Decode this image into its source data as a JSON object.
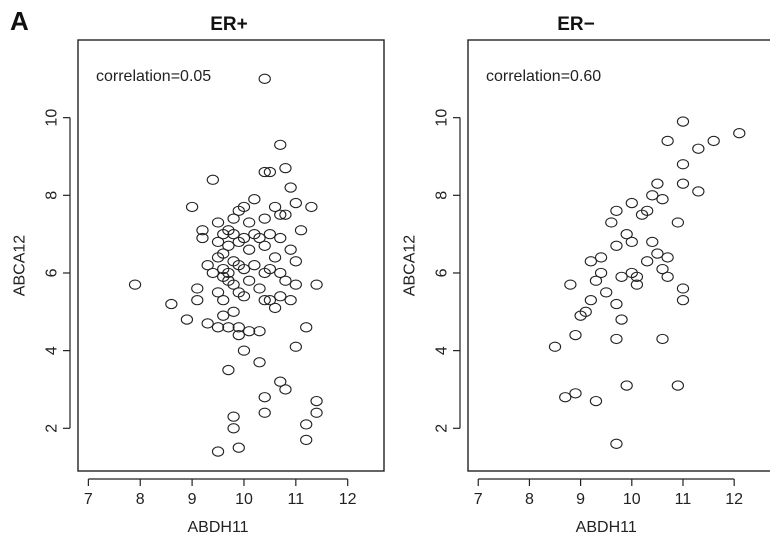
{
  "figure_label": "A",
  "chart_data": [
    {
      "type": "scatter",
      "title": "ER+",
      "xlabel": "ABDH11",
      "ylabel": "ABCA12",
      "annotation": "correlation=0.05",
      "xlim": [
        6.8,
        12.7
      ],
      "ylim": [
        0.9,
        12.0
      ],
      "xticks": [
        7,
        8,
        9,
        10,
        11,
        12
      ],
      "yticks": [
        2,
        4,
        6,
        8,
        10
      ],
      "points": [
        [
          10.4,
          11.0
        ],
        [
          7.9,
          5.7
        ],
        [
          8.6,
          5.2
        ],
        [
          8.9,
          4.8
        ],
        [
          9.0,
          7.7
        ],
        [
          9.1,
          5.6
        ],
        [
          9.1,
          5.3
        ],
        [
          9.2,
          7.1
        ],
        [
          9.2,
          6.9
        ],
        [
          9.3,
          6.2
        ],
        [
          9.3,
          4.7
        ],
        [
          9.4,
          8.4
        ],
        [
          9.4,
          6.0
        ],
        [
          9.5,
          7.3
        ],
        [
          9.5,
          6.8
        ],
        [
          9.5,
          6.4
        ],
        [
          9.5,
          5.5
        ],
        [
          9.5,
          4.6
        ],
        [
          9.6,
          7.0
        ],
        [
          9.6,
          6.5
        ],
        [
          9.6,
          6.1
        ],
        [
          9.6,
          5.9
        ],
        [
          9.6,
          5.3
        ],
        [
          9.6,
          4.9
        ],
        [
          9.7,
          7.1
        ],
        [
          9.7,
          6.7
        ],
        [
          9.7,
          6.0
        ],
        [
          9.7,
          5.8
        ],
        [
          9.7,
          4.6
        ],
        [
          9.8,
          7.4
        ],
        [
          9.8,
          7.0
        ],
        [
          9.8,
          6.3
        ],
        [
          9.8,
          5.7
        ],
        [
          9.8,
          5.0
        ],
        [
          9.9,
          7.6
        ],
        [
          9.9,
          6.8
        ],
        [
          9.9,
          6.2
        ],
        [
          9.9,
          5.5
        ],
        [
          9.9,
          4.6
        ],
        [
          9.9,
          4.4
        ],
        [
          10.0,
          7.7
        ],
        [
          10.0,
          6.9
        ],
        [
          10.0,
          6.1
        ],
        [
          10.0,
          5.4
        ],
        [
          10.1,
          7.3
        ],
        [
          10.1,
          6.6
        ],
        [
          10.1,
          5.8
        ],
        [
          10.1,
          4.5
        ],
        [
          10.2,
          7.9
        ],
        [
          10.2,
          7.0
        ],
        [
          10.2,
          6.2
        ],
        [
          10.3,
          6.9
        ],
        [
          10.3,
          5.6
        ],
        [
          10.3,
          4.5
        ],
        [
          10.4,
          8.6
        ],
        [
          10.4,
          7.4
        ],
        [
          10.4,
          6.7
        ],
        [
          10.4,
          6.0
        ],
        [
          10.4,
          5.3
        ],
        [
          10.5,
          8.6
        ],
        [
          10.5,
          7.0
        ],
        [
          10.5,
          6.1
        ],
        [
          10.5,
          5.3
        ],
        [
          10.6,
          7.7
        ],
        [
          10.6,
          6.4
        ],
        [
          10.6,
          5.1
        ],
        [
          10.7,
          9.3
        ],
        [
          10.7,
          7.5
        ],
        [
          10.7,
          6.9
        ],
        [
          10.7,
          6.0
        ],
        [
          10.7,
          5.4
        ],
        [
          10.8,
          8.7
        ],
        [
          10.8,
          7.5
        ],
        [
          10.8,
          5.8
        ],
        [
          10.9,
          8.2
        ],
        [
          10.9,
          6.6
        ],
        [
          10.9,
          5.3
        ],
        [
          11.0,
          7.8
        ],
        [
          11.0,
          6.3
        ],
        [
          11.0,
          5.7
        ],
        [
          11.0,
          4.1
        ],
        [
          11.1,
          7.1
        ],
        [
          11.2,
          4.6
        ],
        [
          11.3,
          7.7
        ],
        [
          11.4,
          5.7
        ],
        [
          9.7,
          3.5
        ],
        [
          9.8,
          2.3
        ],
        [
          9.8,
          2.0
        ],
        [
          9.9,
          1.5
        ],
        [
          9.5,
          1.4
        ],
        [
          10.0,
          4.0
        ],
        [
          10.3,
          3.7
        ],
        [
          10.4,
          2.8
        ],
        [
          10.4,
          2.4
        ],
        [
          10.7,
          3.2
        ],
        [
          10.8,
          3.0
        ],
        [
          11.2,
          2.1
        ],
        [
          11.2,
          1.7
        ],
        [
          11.4,
          2.4
        ],
        [
          11.4,
          2.7
        ]
      ]
    },
    {
      "type": "scatter",
      "title": "ER−",
      "xlabel": "ABDH11",
      "ylabel": "ABCA12",
      "annotation": "correlation=0.60",
      "xlim": [
        6.8,
        12.7
      ],
      "ylim": [
        0.9,
        12.0
      ],
      "xticks": [
        7,
        8,
        9,
        10,
        11,
        12
      ],
      "yticks": [
        2,
        4,
        6,
        8,
        10
      ],
      "points": [
        [
          8.5,
          4.1
        ],
        [
          8.7,
          2.8
        ],
        [
          8.8,
          5.7
        ],
        [
          8.9,
          2.9
        ],
        [
          8.9,
          4.4
        ],
        [
          9.0,
          4.9
        ],
        [
          9.1,
          5.0
        ],
        [
          9.2,
          5.3
        ],
        [
          9.2,
          6.3
        ],
        [
          9.3,
          5.8
        ],
        [
          9.3,
          2.7
        ],
        [
          9.4,
          6.0
        ],
        [
          9.4,
          6.4
        ],
        [
          9.5,
          5.5
        ],
        [
          9.6,
          7.3
        ],
        [
          9.7,
          7.6
        ],
        [
          9.7,
          6.7
        ],
        [
          9.7,
          5.2
        ],
        [
          9.7,
          4.3
        ],
        [
          9.8,
          4.8
        ],
        [
          9.8,
          5.9
        ],
        [
          9.7,
          1.6
        ],
        [
          9.9,
          3.1
        ],
        [
          9.9,
          7.0
        ],
        [
          10.0,
          7.8
        ],
        [
          10.0,
          6.0
        ],
        [
          10.0,
          6.8
        ],
        [
          10.1,
          5.7
        ],
        [
          10.1,
          5.9
        ],
        [
          10.2,
          7.5
        ],
        [
          10.3,
          7.6
        ],
        [
          10.3,
          6.3
        ],
        [
          10.4,
          6.8
        ],
        [
          10.4,
          8.0
        ],
        [
          10.5,
          8.3
        ],
        [
          10.5,
          6.5
        ],
        [
          10.6,
          6.1
        ],
        [
          10.6,
          7.9
        ],
        [
          10.6,
          4.3
        ],
        [
          10.7,
          9.4
        ],
        [
          10.7,
          6.4
        ],
        [
          10.7,
          5.9
        ],
        [
          10.9,
          3.1
        ],
        [
          10.9,
          7.3
        ],
        [
          11.0,
          8.8
        ],
        [
          11.0,
          8.3
        ],
        [
          11.0,
          5.6
        ],
        [
          11.0,
          5.3
        ],
        [
          11.0,
          9.9
        ],
        [
          11.3,
          9.2
        ],
        [
          11.3,
          8.1
        ],
        [
          11.6,
          9.4
        ],
        [
          12.1,
          9.6
        ]
      ]
    }
  ]
}
